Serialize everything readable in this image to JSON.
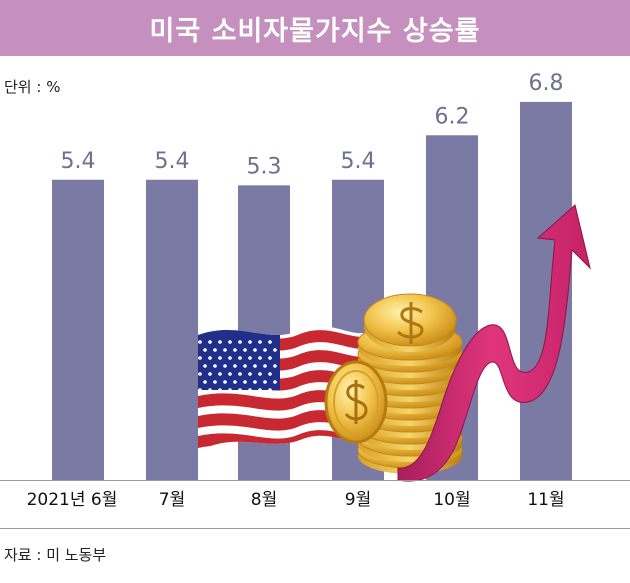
{
  "header": {
    "title": "미국 소비자물가지수 상승률"
  },
  "unit_label": "단위 : %",
  "source_label": "자료 : 미 노동부",
  "colors": {
    "title_bg": "#c58fbe",
    "bar": "#7b7aa5",
    "value_text": "#6f6f8f",
    "arrow": "#e0357c"
  },
  "chart_data": {
    "type": "bar",
    "title": "미국 소비자물가지수 상승률",
    "unit": "%",
    "categories": [
      "2021년 6월",
      "7월",
      "8월",
      "9월",
      "10월",
      "11월"
    ],
    "values": [
      5.4,
      5.4,
      5.3,
      5.4,
      6.2,
      6.8
    ],
    "value_labels": [
      "5.4",
      "5.4",
      "5.3",
      "5.4",
      "6.2",
      "6.8"
    ],
    "source": "자료 : 미 노동부"
  }
}
